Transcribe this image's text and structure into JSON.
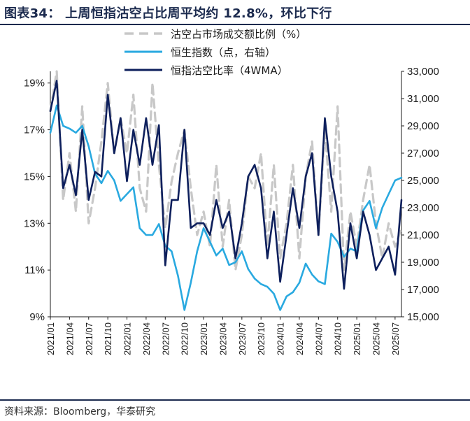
{
  "title": "图表34：  上周恒指沽空占比周平均约 12.8%，环比下行",
  "source": "资料来源：Bloomberg，华泰研究",
  "colors": {
    "short_ratio": "#c8c8c8",
    "hsi": "#29a9e0",
    "short_ratio_4wma": "#0d1f5c",
    "title": "#1b2a4e"
  },
  "chart_data": {
    "type": "line",
    "legend_position": "top",
    "x_ticks": [
      "2021/01",
      "2021/04",
      "2021/07",
      "2021/10",
      "2022/01",
      "2022/04",
      "2022/07",
      "2022/10",
      "2023/01",
      "2023/04",
      "2023/07",
      "2023/10",
      "2024/01",
      "2024/04",
      "2024/07",
      "2024/10",
      "2025/01",
      "2025/04",
      "2025/07"
    ],
    "y_left": {
      "ylim": [
        9,
        19.5
      ],
      "ticks": [
        "9%",
        "11%",
        "13%",
        "15%",
        "17%",
        "19%"
      ]
    },
    "y_right": {
      "ylim": [
        15000,
        33000
      ],
      "ticks": [
        "15,000",
        "17,000",
        "19,000",
        "21,000",
        "23,000",
        "25,000",
        "27,000",
        "29,000",
        "31,000",
        "33,000"
      ]
    },
    "x_start": "2021/01",
    "x_end": "2025/08",
    "series": [
      {
        "name": "沽空占市场成交额比例（%）",
        "axis": "left",
        "style": "dashed",
        "x": [
          "2021/01",
          "2021/02",
          "2021/03",
          "2021/04",
          "2021/05",
          "2021/06",
          "2021/07",
          "2021/08",
          "2021/09",
          "2021/10",
          "2021/11",
          "2021/12",
          "2022/01",
          "2022/02",
          "2022/03",
          "2022/04",
          "2022/05",
          "2022/06",
          "2022/07",
          "2022/08",
          "2022/09",
          "2022/10",
          "2022/11",
          "2022/12",
          "2023/01",
          "2023/02",
          "2023/03",
          "2023/04",
          "2023/05",
          "2023/06",
          "2023/07",
          "2023/08",
          "2023/09",
          "2023/10",
          "2023/11",
          "2023/12",
          "2024/01",
          "2024/02",
          "2024/03",
          "2024/04",
          "2024/05",
          "2024/06",
          "2024/07",
          "2024/08",
          "2024/09",
          "2024/10",
          "2024/11",
          "2024/12",
          "2025/01",
          "2025/02",
          "2025/03",
          "2025/04",
          "2025/05",
          "2025/06",
          "2025/07",
          "2025/08"
        ],
        "values": [
          17.8,
          19.5,
          14.0,
          16.0,
          13.5,
          18.0,
          13.0,
          14.5,
          16.5,
          19.0,
          16.0,
          17.5,
          16.0,
          18.5,
          14.5,
          13.5,
          19.0,
          15.5,
          12.8,
          14.8,
          16.0,
          17.0,
          14.5,
          12.5,
          13.5,
          12.0,
          15.5,
          12.0,
          14.0,
          11.0,
          12.5,
          15.0,
          14.5,
          16.0,
          12.0,
          15.5,
          11.5,
          13.0,
          15.5,
          11.5,
          15.0,
          16.5,
          12.5,
          17.0,
          13.5,
          18.0,
          11.0,
          13.5,
          12.0,
          14.0,
          15.5,
          13.0,
          11.5,
          13.0,
          12.0,
          12.8
        ]
      },
      {
        "name": "恒生指数（点，右轴）",
        "axis": "right",
        "style": "solid",
        "x": [
          "2021/01",
          "2021/02",
          "2021/03",
          "2021/04",
          "2021/05",
          "2021/06",
          "2021/07",
          "2021/08",
          "2021/09",
          "2021/10",
          "2021/11",
          "2021/12",
          "2022/01",
          "2022/02",
          "2022/03",
          "2022/04",
          "2022/05",
          "2022/06",
          "2022/07",
          "2022/08",
          "2022/09",
          "2022/10",
          "2022/11",
          "2022/12",
          "2023/01",
          "2023/02",
          "2023/03",
          "2023/04",
          "2023/05",
          "2023/06",
          "2023/07",
          "2023/08",
          "2023/09",
          "2023/10",
          "2023/11",
          "2023/12",
          "2024/01",
          "2024/02",
          "2024/03",
          "2024/04",
          "2024/05",
          "2024/06",
          "2024/07",
          "2024/08",
          "2024/09",
          "2024/10",
          "2024/11",
          "2024/12",
          "2025/01",
          "2025/02",
          "2025/03",
          "2025/04",
          "2025/05",
          "2025/06",
          "2025/07",
          "2025/08"
        ],
        "values": [
          28500,
          30500,
          29000,
          28800,
          28500,
          29000,
          27500,
          25500,
          24800,
          25700,
          25000,
          23500,
          24000,
          24500,
          21500,
          21000,
          21000,
          21800,
          20200,
          19800,
          18000,
          15500,
          17500,
          19800,
          21500,
          20500,
          19500,
          20000,
          18800,
          19000,
          19800,
          18500,
          17800,
          17400,
          17200,
          16700,
          15500,
          16500,
          16800,
          17500,
          18900,
          18100,
          17600,
          17400,
          21100,
          20500,
          19400,
          20000,
          19800,
          22800,
          23500,
          21500,
          23000,
          24000,
          25000,
          25200
        ]
      },
      {
        "name": "恒指沽空比率（4WMA）",
        "axis": "left",
        "style": "solid",
        "x": [
          "2021/01",
          "2021/02",
          "2021/03",
          "2021/04",
          "2021/05",
          "2021/06",
          "2021/07",
          "2021/08",
          "2021/09",
          "2021/10",
          "2021/11",
          "2021/12",
          "2022/01",
          "2022/02",
          "2022/03",
          "2022/04",
          "2022/05",
          "2022/06",
          "2022/07",
          "2022/08",
          "2022/09",
          "2022/10",
          "2022/11",
          "2022/12",
          "2023/01",
          "2023/02",
          "2023/03",
          "2023/04",
          "2023/05",
          "2023/06",
          "2023/07",
          "2023/08",
          "2023/09",
          "2023/10",
          "2023/11",
          "2023/12",
          "2024/01",
          "2024/02",
          "2024/03",
          "2024/04",
          "2024/05",
          "2024/06",
          "2024/07",
          "2024/08",
          "2024/09",
          "2024/10",
          "2024/11",
          "2024/12",
          "2025/01",
          "2025/02",
          "2025/03",
          "2025/04",
          "2025/05",
          "2025/06",
          "2025/07",
          "2025/08"
        ],
        "values": [
          17.8,
          19.1,
          14.5,
          15.5,
          14.2,
          17.0,
          14.0,
          15.2,
          15.0,
          18.5,
          16.0,
          17.5,
          14.8,
          17.0,
          15.5,
          17.5,
          15.5,
          17.2,
          11.2,
          14.0,
          14.0,
          17.0,
          12.8,
          13.0,
          13.0,
          12.5,
          14.0,
          12.8,
          13.5,
          11.5,
          13.0,
          15.0,
          15.5,
          14.5,
          11.5,
          13.5,
          10.5,
          12.5,
          14.5,
          12.8,
          15.0,
          16.0,
          12.5,
          17.5,
          15.0,
          13.5,
          10.2,
          13.0,
          11.5,
          13.5,
          12.5,
          11.0,
          11.5,
          12.0,
          10.8,
          14.0
        ]
      }
    ]
  }
}
